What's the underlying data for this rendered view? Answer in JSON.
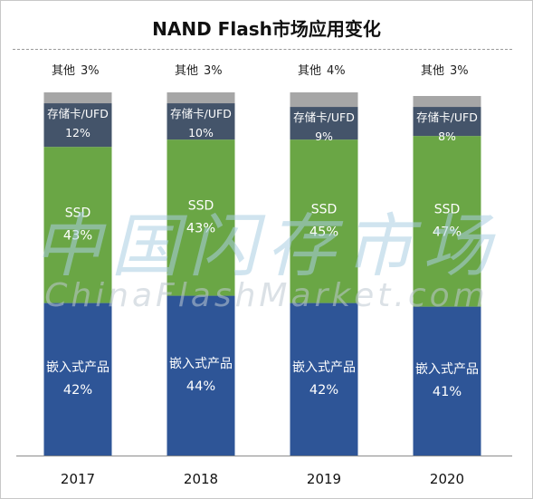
{
  "chart_data": {
    "type": "bar",
    "stacked": true,
    "title": "NAND Flash市场应用变化",
    "categories": [
      "2017",
      "2018",
      "2019",
      "2020"
    ],
    "series": [
      {
        "name": "嵌入式产品",
        "values": [
          42,
          44,
          42,
          41
        ],
        "color": "#2e5597",
        "labels": [
          "42%",
          "44%",
          "42%",
          "41%"
        ]
      },
      {
        "name": "SSD",
        "values": [
          43,
          43,
          45,
          47
        ],
        "color": "#6aa645",
        "labels": [
          "43%",
          "43%",
          "45%",
          "47%"
        ]
      },
      {
        "name": "存储卡/UFD",
        "values": [
          12,
          10,
          9,
          8
        ],
        "color": "#44546a",
        "labels": [
          "12%",
          "10%",
          "9%",
          "8%"
        ]
      },
      {
        "name": "其他",
        "values": [
          3,
          3,
          4,
          3
        ],
        "color": "#a6a6a6",
        "labels": [
          "3%",
          "3%",
          "4%",
          "3%"
        ]
      }
    ],
    "ylim": [
      0,
      100
    ],
    "grid": false,
    "legend": "none"
  },
  "watermark": {
    "cn": "中国闪存市场",
    "en": "ChinaFlashMarket.com"
  }
}
